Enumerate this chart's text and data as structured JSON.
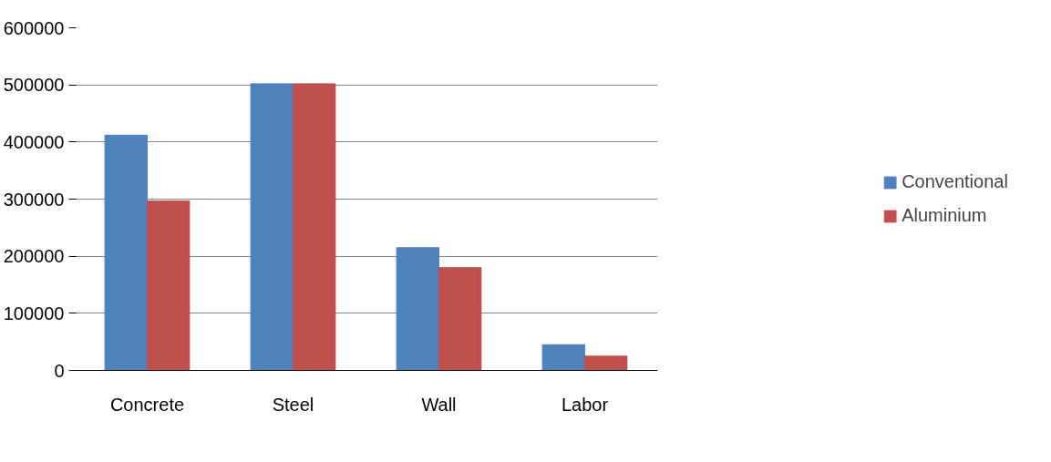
{
  "chart_data": {
    "type": "bar",
    "categories": [
      "Concrete",
      "Steel",
      "Wall",
      "Labor"
    ],
    "series": [
      {
        "name": "Conventional",
        "color": "#4f81bd",
        "values": [
          412000,
          502000,
          215000,
          45000
        ]
      },
      {
        "name": "Aluminium",
        "color": "#c0504d",
        "values": [
          297000,
          502000,
          180000,
          25000
        ]
      }
    ],
    "ylim": [
      0,
      600000
    ],
    "yticks": [
      0,
      100000,
      200000,
      300000,
      400000,
      500000,
      600000
    ],
    "grid": "y",
    "legend": "right"
  }
}
